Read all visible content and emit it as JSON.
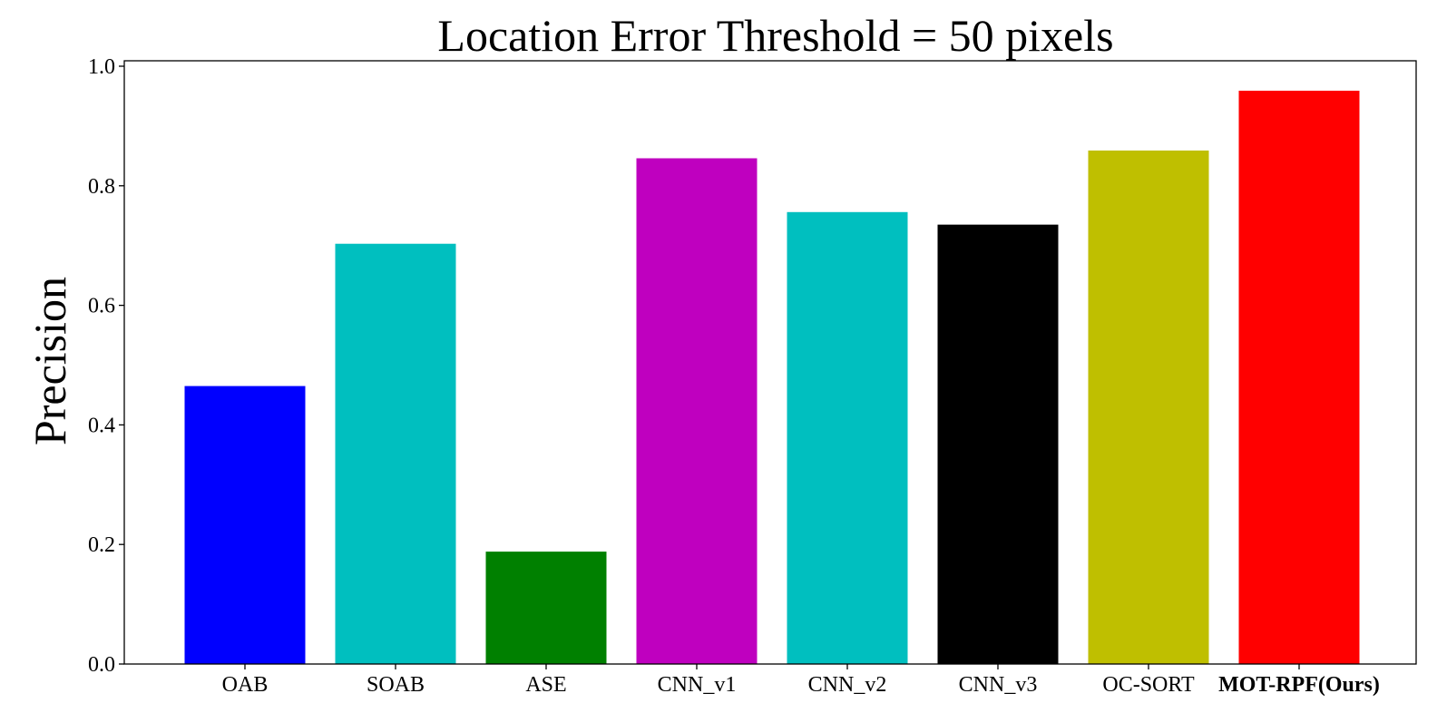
{
  "chart_data": {
    "type": "bar",
    "title": "Location Error Threshold = 50 pixels",
    "xlabel": "",
    "ylabel": "Precision",
    "categories": [
      "OAB",
      "SOAB",
      "ASE",
      "CNN_v1",
      "CNN_v2",
      "CNN_v3",
      "OC-SORT",
      "MOT-RPF(Ours)"
    ],
    "values": [
      0.465,
      0.703,
      0.188,
      0.846,
      0.756,
      0.735,
      0.859,
      0.959
    ],
    "colors": [
      "#0000ff",
      "#00bfbf",
      "#008000",
      "#bf00bf",
      "#00bfbf",
      "#000000",
      "#bfbf00",
      "#ff0000"
    ],
    "bold_categories": [
      "MOT-RPF(Ours)"
    ],
    "ylim": [
      0.0,
      1.0
    ],
    "yticks": [
      "0.0",
      "0.2",
      "0.4",
      "0.6",
      "0.8",
      "1.0"
    ],
    "grid": false,
    "legend": "none"
  }
}
